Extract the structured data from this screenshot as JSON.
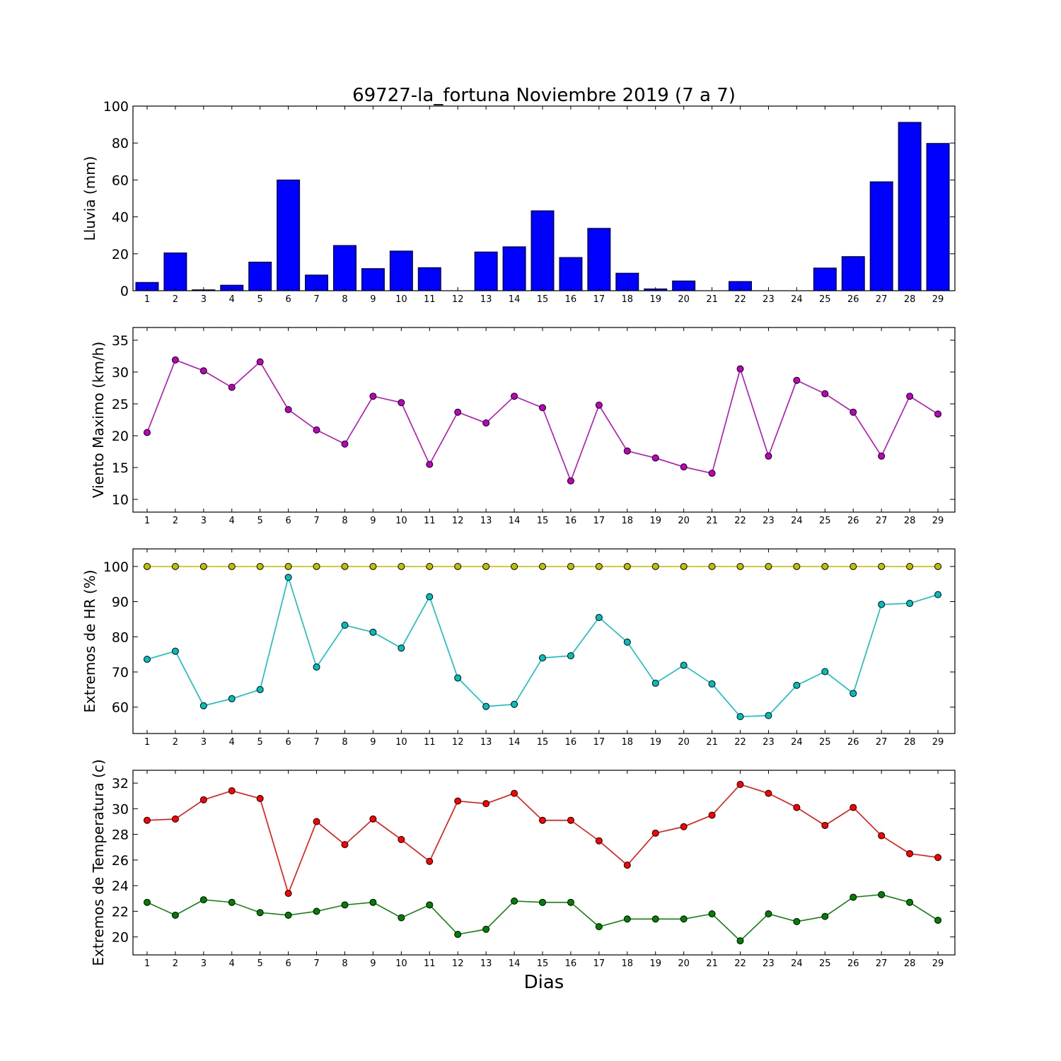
{
  "title": "69727-la_fortuna Noviembre 2019  (7 a 7)",
  "xlabel": "Dias",
  "chart_data": [
    {
      "type": "bar",
      "ylabel": "Lluvia (mm)",
      "ylim": [
        0,
        100
      ],
      "yticks": [
        0,
        20,
        40,
        60,
        80,
        100
      ],
      "categories": [
        "1",
        "2",
        "3",
        "4",
        "5",
        "6",
        "7",
        "8",
        "9",
        "10",
        "11",
        "12",
        "13",
        "14",
        "15",
        "16",
        "17",
        "18",
        "19",
        "20",
        "21",
        "22",
        "23",
        "24",
        "25",
        "26",
        "27",
        "28",
        "29"
      ],
      "series": [
        {
          "color": "#0000ff",
          "values": [
            4.5,
            20.5,
            0.5,
            3,
            15.5,
            60,
            8.5,
            24.5,
            12,
            21.5,
            12.5,
            0,
            21,
            23.8,
            43.3,
            18,
            33.8,
            9.5,
            1,
            5.3,
            0,
            5,
            0,
            0,
            12.3,
            18.5,
            59,
            91.2,
            79.8
          ]
        }
      ]
    },
    {
      "type": "line",
      "ylabel": "Viento Maximo (km/h)",
      "ylim": [
        8,
        37
      ],
      "yticks": [
        10,
        15,
        20,
        25,
        30,
        35
      ],
      "categories": [
        "1",
        "2",
        "3",
        "4",
        "5",
        "6",
        "7",
        "8",
        "9",
        "10",
        "11",
        "12",
        "13",
        "14",
        "15",
        "16",
        "17",
        "18",
        "19",
        "20",
        "21",
        "22",
        "23",
        "24",
        "25",
        "26",
        "27",
        "28",
        "29"
      ],
      "series": [
        {
          "color": "#bf00bf",
          "values": [
            20.5,
            31.9,
            30.2,
            27.6,
            31.6,
            24.1,
            20.9,
            18.7,
            26.2,
            25.2,
            15.5,
            23.7,
            22,
            26.2,
            24.4,
            12.9,
            24.8,
            17.6,
            16.5,
            15.1,
            14.1,
            30.5,
            16.8,
            28.7,
            26.6,
            23.7,
            16.8,
            26.2,
            23.4
          ]
        }
      ]
    },
    {
      "type": "line",
      "ylabel": "Extremos de HR (%)",
      "ylim": [
        52.5,
        105
      ],
      "yticks": [
        60,
        70,
        80,
        90,
        100
      ],
      "categories": [
        "1",
        "2",
        "3",
        "4",
        "5",
        "6",
        "7",
        "8",
        "9",
        "10",
        "11",
        "12",
        "13",
        "14",
        "15",
        "16",
        "17",
        "18",
        "19",
        "20",
        "21",
        "22",
        "23",
        "24",
        "25",
        "26",
        "27",
        "28",
        "29"
      ],
      "series": [
        {
          "color": "#bfbf00",
          "values": [
            100,
            100,
            100,
            100,
            100,
            100,
            100,
            100,
            100,
            100,
            100,
            100,
            100,
            100,
            100,
            100,
            100,
            100,
            100,
            100,
            100,
            100,
            100,
            100,
            100,
            100,
            100,
            100,
            100
          ]
        },
        {
          "color": "#00bfbf",
          "values": [
            73.6,
            75.9,
            60.4,
            62.4,
            65,
            96.9,
            71.4,
            83.3,
            81.3,
            76.8,
            91.4,
            68.3,
            60.2,
            60.8,
            74,
            74.6,
            85.5,
            78.5,
            66.8,
            71.9,
            66.6,
            57.3,
            57.6,
            66.2,
            70.1,
            63.9,
            89.2,
            89.5,
            92
          ]
        }
      ]
    },
    {
      "type": "line",
      "ylabel": "Extremos de Temperatura (c)",
      "ylim": [
        18.6,
        33
      ],
      "yticks": [
        20,
        22,
        24,
        26,
        28,
        30,
        32
      ],
      "categories": [
        "1",
        "2",
        "3",
        "4",
        "5",
        "6",
        "7",
        "8",
        "9",
        "10",
        "11",
        "12",
        "13",
        "14",
        "15",
        "16",
        "17",
        "18",
        "19",
        "20",
        "21",
        "22",
        "23",
        "24",
        "25",
        "26",
        "27",
        "28",
        "29"
      ],
      "series": [
        {
          "color": "#ff0000",
          "values": [
            29.1,
            29.2,
            30.7,
            31.4,
            30.8,
            23.4,
            29,
            27.2,
            29.2,
            27.6,
            25.9,
            30.6,
            30.4,
            31.2,
            29.1,
            29.1,
            27.5,
            25.6,
            28.1,
            28.6,
            29.5,
            31.9,
            31.2,
            30.1,
            28.7,
            30.1,
            27.9,
            26.5,
            26.2
          ]
        },
        {
          "color": "#008000",
          "values": [
            22.7,
            21.7,
            22.9,
            22.7,
            21.9,
            21.7,
            22,
            22.5,
            22.7,
            21.5,
            22.5,
            20.2,
            20.6,
            22.8,
            22.7,
            22.7,
            20.8,
            21.4,
            21.4,
            21.4,
            21.8,
            19.7,
            21.8,
            21.2,
            21.6,
            23.1,
            23.3,
            22.7,
            21.3
          ]
        }
      ]
    }
  ]
}
